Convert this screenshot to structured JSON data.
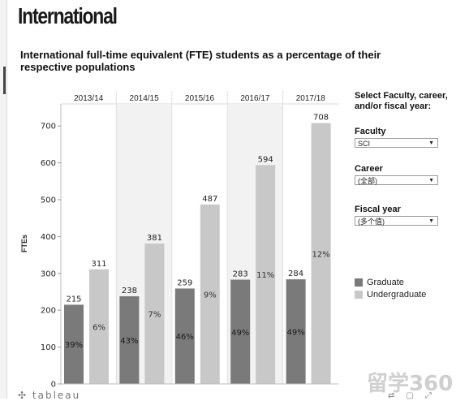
{
  "page_heading": "International",
  "chart_title": "International full-time equivalent (FTE) students as a percentage of their respective populations",
  "chart_data": {
    "type": "bar",
    "categories": [
      "2013/14",
      "2014/15",
      "2015/16",
      "2016/17",
      "2017/18"
    ],
    "series": [
      {
        "name": "Graduate",
        "values": [
          215,
          238,
          259,
          283,
          284
        ],
        "percent_labels": [
          "39%",
          "43%",
          "46%",
          "49%",
          "49%"
        ],
        "color": "#7a7a7a"
      },
      {
        "name": "Undergraduate",
        "values": [
          311,
          381,
          487,
          594,
          708
        ],
        "percent_labels": [
          "6%",
          "7%",
          "9%",
          "11%",
          "12%"
        ],
        "color": "#c8c8c8"
      }
    ],
    "ylabel": "FTEs",
    "ylim": [
      0,
      760
    ],
    "yticks": [
      0,
      100,
      200,
      300,
      400,
      500,
      600,
      700
    ],
    "grid": false,
    "legend_position": "right"
  },
  "filters": {
    "heading": "Select Faculty, career, and/or fiscal year:",
    "items": [
      {
        "label": "Faculty",
        "value": "SCI"
      },
      {
        "label": "Career",
        "value": "(全部)"
      },
      {
        "label": "Fiscal year",
        "value": "(多个值)"
      }
    ]
  },
  "legend": {
    "items": [
      {
        "label": "Graduate",
        "color": "#7a7a7a"
      },
      {
        "label": "Undergraduate",
        "color": "#c8c8c8"
      }
    ]
  },
  "footer": {
    "brand": "tableau",
    "watermark": "留学360"
  }
}
